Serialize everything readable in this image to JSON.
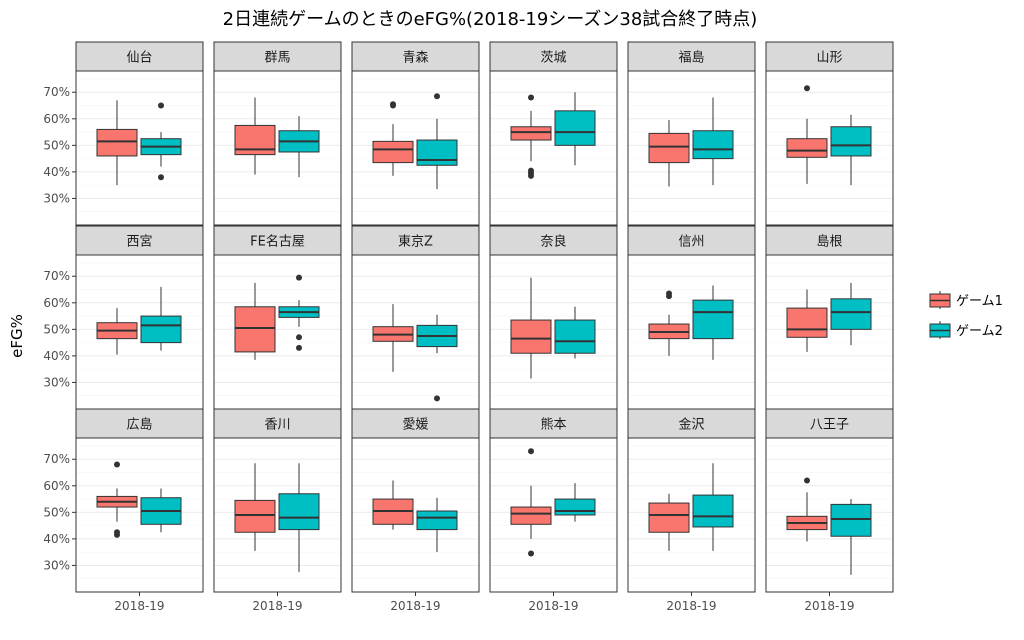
{
  "chart_data": {
    "type": "boxplot",
    "title": "2日連続ゲームのときのeFG%(2018-19シーズン38試合終了時点)",
    "ylabel": "eFG%",
    "xlabel": "",
    "x_category": "2018-19",
    "ylim": [
      0.2,
      0.78
    ],
    "yticks": [
      0.3,
      0.4,
      0.5,
      0.6,
      0.7
    ],
    "ytick_labels": [
      "30%",
      "40%",
      "50%",
      "60%",
      "70%"
    ],
    "grid": true,
    "legend_position": "right",
    "series": [
      {
        "name": "ゲーム1",
        "color": "#F8766D"
      },
      {
        "name": "ゲーム2",
        "color": "#00BFC4"
      }
    ],
    "panels": [
      {
        "name": "仙台",
        "boxes": [
          {
            "min": 0.35,
            "q1": 0.46,
            "median": 0.515,
            "q3": 0.56,
            "max": 0.67,
            "outliers": []
          },
          {
            "min": 0.42,
            "q1": 0.465,
            "median": 0.495,
            "q3": 0.525,
            "max": 0.55,
            "outliers": [
              0.65,
              0.38
            ]
          }
        ]
      },
      {
        "name": "群馬",
        "boxes": [
          {
            "min": 0.39,
            "q1": 0.465,
            "median": 0.485,
            "q3": 0.575,
            "max": 0.68,
            "outliers": []
          },
          {
            "min": 0.38,
            "q1": 0.475,
            "median": 0.515,
            "q3": 0.555,
            "max": 0.61,
            "outliers": []
          }
        ]
      },
      {
        "name": "青森",
        "boxes": [
          {
            "min": 0.385,
            "q1": 0.435,
            "median": 0.485,
            "q3": 0.515,
            "max": 0.58,
            "outliers": [
              0.655,
              0.65
            ]
          },
          {
            "min": 0.335,
            "q1": 0.425,
            "median": 0.445,
            "q3": 0.52,
            "max": 0.6,
            "outliers": [
              0.685
            ]
          }
        ]
      },
      {
        "name": "茨城",
        "boxes": [
          {
            "min": 0.44,
            "q1": 0.52,
            "median": 0.55,
            "q3": 0.57,
            "max": 0.63,
            "outliers": [
              0.68,
              0.405,
              0.395,
              0.385
            ]
          },
          {
            "min": 0.425,
            "q1": 0.5,
            "median": 0.55,
            "q3": 0.63,
            "max": 0.7,
            "outliers": []
          }
        ]
      },
      {
        "name": "福島",
        "boxes": [
          {
            "min": 0.345,
            "q1": 0.435,
            "median": 0.495,
            "q3": 0.545,
            "max": 0.595,
            "outliers": []
          },
          {
            "min": 0.35,
            "q1": 0.45,
            "median": 0.485,
            "q3": 0.555,
            "max": 0.68,
            "outliers": []
          }
        ]
      },
      {
        "name": "山形",
        "boxes": [
          {
            "min": 0.355,
            "q1": 0.455,
            "median": 0.48,
            "q3": 0.525,
            "max": 0.6,
            "outliers": [
              0.715
            ]
          },
          {
            "min": 0.35,
            "q1": 0.46,
            "median": 0.5,
            "q3": 0.57,
            "max": 0.615,
            "outliers": []
          }
        ]
      },
      {
        "name": "西宮",
        "boxes": [
          {
            "min": 0.405,
            "q1": 0.465,
            "median": 0.495,
            "q3": 0.525,
            "max": 0.58,
            "outliers": []
          },
          {
            "min": 0.42,
            "q1": 0.45,
            "median": 0.515,
            "q3": 0.55,
            "max": 0.66,
            "outliers": []
          }
        ]
      },
      {
        "name": "FE名古屋",
        "boxes": [
          {
            "min": 0.385,
            "q1": 0.415,
            "median": 0.505,
            "q3": 0.585,
            "max": 0.675,
            "outliers": []
          },
          {
            "min": 0.51,
            "q1": 0.545,
            "median": 0.565,
            "q3": 0.585,
            "max": 0.61,
            "outliers": [
              0.695,
              0.47,
              0.43
            ]
          }
        ]
      },
      {
        "name": "東京Z",
        "boxes": [
          {
            "min": 0.34,
            "q1": 0.455,
            "median": 0.48,
            "q3": 0.51,
            "max": 0.595,
            "outliers": []
          },
          {
            "min": 0.41,
            "q1": 0.435,
            "median": 0.475,
            "q3": 0.515,
            "max": 0.555,
            "outliers": [
              0.24
            ]
          }
        ]
      },
      {
        "name": "奈良",
        "boxes": [
          {
            "min": 0.315,
            "q1": 0.41,
            "median": 0.465,
            "q3": 0.535,
            "max": 0.695,
            "outliers": []
          },
          {
            "min": 0.39,
            "q1": 0.41,
            "median": 0.455,
            "q3": 0.535,
            "max": 0.585,
            "outliers": []
          }
        ]
      },
      {
        "name": "信州",
        "boxes": [
          {
            "min": 0.4,
            "q1": 0.465,
            "median": 0.49,
            "q3": 0.52,
            "max": 0.555,
            "outliers": [
              0.635,
              0.625
            ]
          },
          {
            "min": 0.385,
            "q1": 0.465,
            "median": 0.565,
            "q3": 0.61,
            "max": 0.665,
            "outliers": []
          }
        ]
      },
      {
        "name": "島根",
        "boxes": [
          {
            "min": 0.415,
            "q1": 0.47,
            "median": 0.5,
            "q3": 0.58,
            "max": 0.65,
            "outliers": []
          },
          {
            "min": 0.44,
            "q1": 0.5,
            "median": 0.565,
            "q3": 0.615,
            "max": 0.675,
            "outliers": []
          }
        ]
      },
      {
        "name": "広島",
        "boxes": [
          {
            "min": 0.465,
            "q1": 0.52,
            "median": 0.54,
            "q3": 0.56,
            "max": 0.59,
            "outliers": [
              0.68,
              0.425,
              0.415
            ]
          },
          {
            "min": 0.425,
            "q1": 0.455,
            "median": 0.505,
            "q3": 0.555,
            "max": 0.59,
            "outliers": []
          }
        ]
      },
      {
        "name": "香川",
        "boxes": [
          {
            "min": 0.355,
            "q1": 0.425,
            "median": 0.49,
            "q3": 0.545,
            "max": 0.685,
            "outliers": []
          },
          {
            "min": 0.275,
            "q1": 0.435,
            "median": 0.48,
            "q3": 0.57,
            "max": 0.685,
            "outliers": []
          }
        ]
      },
      {
        "name": "愛媛",
        "boxes": [
          {
            "min": 0.435,
            "q1": 0.455,
            "median": 0.505,
            "q3": 0.55,
            "max": 0.62,
            "outliers": []
          },
          {
            "min": 0.35,
            "q1": 0.435,
            "median": 0.48,
            "q3": 0.505,
            "max": 0.555,
            "outliers": []
          }
        ]
      },
      {
        "name": "熊本",
        "boxes": [
          {
            "min": 0.4,
            "q1": 0.455,
            "median": 0.495,
            "q3": 0.52,
            "max": 0.6,
            "outliers": [
              0.73,
              0.345
            ]
          },
          {
            "min": 0.465,
            "q1": 0.49,
            "median": 0.505,
            "q3": 0.55,
            "max": 0.61,
            "outliers": []
          }
        ]
      },
      {
        "name": "金沢",
        "boxes": [
          {
            "min": 0.355,
            "q1": 0.425,
            "median": 0.49,
            "q3": 0.535,
            "max": 0.57,
            "outliers": []
          },
          {
            "min": 0.355,
            "q1": 0.445,
            "median": 0.485,
            "q3": 0.565,
            "max": 0.685,
            "outliers": []
          }
        ]
      },
      {
        "name": "八王子",
        "boxes": [
          {
            "min": 0.39,
            "q1": 0.435,
            "median": 0.46,
            "q3": 0.485,
            "max": 0.575,
            "outliers": [
              0.62
            ]
          },
          {
            "min": 0.265,
            "q1": 0.41,
            "median": 0.475,
            "q3": 0.53,
            "max": 0.55,
            "outliers": []
          }
        ]
      }
    ]
  }
}
